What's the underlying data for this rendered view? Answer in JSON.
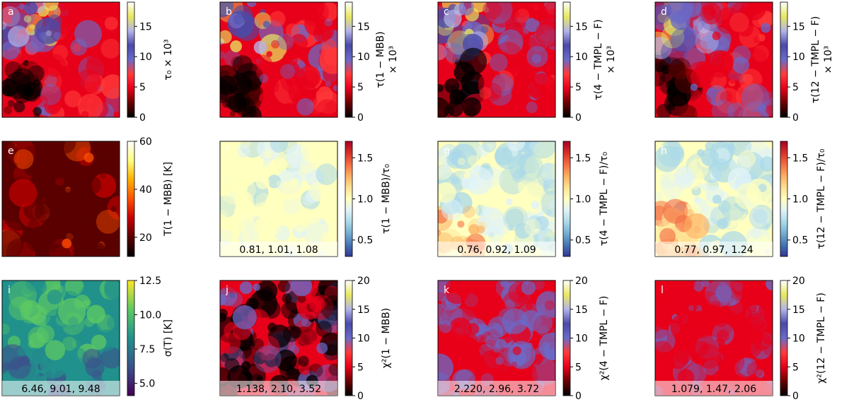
{
  "chart_data": [
    {
      "type": "heatmap",
      "letter": "a",
      "colormap": "tau",
      "label": "τ₀ × 10³",
      "label_lines": [
        "τ₀ × 10³"
      ],
      "clim": [
        0,
        19
      ],
      "ticks": [
        0,
        5,
        10,
        15
      ],
      "stats": ""
    },
    {
      "type": "heatmap",
      "letter": "b",
      "colormap": "tau",
      "label": "τ(1 − MBB) × 10³",
      "label_lines": [
        "τ(1 − MBB)",
        "× 10³"
      ],
      "clim": [
        0,
        19
      ],
      "ticks": [
        0,
        5,
        10,
        15
      ],
      "stats": ""
    },
    {
      "type": "heatmap",
      "letter": "c",
      "colormap": "tau",
      "label": "τ(4 − TMPL − F) × 10³",
      "label_lines": [
        "τ(4 − TMPL − F)",
        "× 10³"
      ],
      "clim": [
        0,
        19
      ],
      "ticks": [
        0,
        5,
        10,
        15
      ],
      "stats": ""
    },
    {
      "type": "heatmap",
      "letter": "d",
      "colormap": "tau",
      "label": "τ(12 − TMPL − F) × 10³",
      "label_lines": [
        "τ(12 − TMPL − F)",
        "× 10³"
      ],
      "clim": [
        0,
        19
      ],
      "ticks": [
        0,
        5,
        10,
        15
      ],
      "stats": ""
    },
    {
      "type": "heatmap",
      "letter": "e",
      "colormap": "hot",
      "label": "T(1 − MBB) [K]",
      "label_lines": [
        "T(1 − MBB) [K]"
      ],
      "clim": [
        12,
        60
      ],
      "ticks": [
        20,
        40,
        60
      ],
      "stats": ""
    },
    {
      "type": "heatmap",
      "letter": "f",
      "colormap": "rdylbu",
      "label": "τ(1 − MBB)/τ₀",
      "label_lines": [
        "τ(1 − MBB)/τ₀"
      ],
      "clim": [
        0.3,
        1.7
      ],
      "ticks": [
        0.5,
        1.0,
        1.5
      ],
      "stats": "0.81, 1.01, 1.08"
    },
    {
      "type": "heatmap",
      "letter": "g",
      "colormap": "rdylbu",
      "label": "τ(4 − TMPL − F)/τ₀",
      "label_lines": [
        "τ(4 − TMPL − F)/τ₀"
      ],
      "clim": [
        0.3,
        1.7
      ],
      "ticks": [
        0.5,
        1.0,
        1.5
      ],
      "stats": "0.76, 0.92, 1.09"
    },
    {
      "type": "heatmap",
      "letter": "h",
      "colormap": "rdylbu",
      "label": "τ(12 − TMPL − F)/τ₀",
      "label_lines": [
        "τ(12 − TMPL − F)/τ₀"
      ],
      "clim": [
        0.3,
        1.7
      ],
      "ticks": [
        0.5,
        1.0,
        1.5
      ],
      "stats": "0.77, 0.97, 1.24"
    },
    {
      "type": "heatmap",
      "letter": "i",
      "colormap": "viridis",
      "label": "σ(T) [K]",
      "label_lines": [
        "σ(T) [K]"
      ],
      "clim": [
        4.1,
        12.5
      ],
      "ticks": [
        5.0,
        7.5,
        10.0,
        12.5
      ],
      "stats": "6.46, 9.01, 9.48"
    },
    {
      "type": "heatmap",
      "letter": "j",
      "colormap": "tau",
      "label": "χ²(1 − MBB)",
      "label_lines": [
        "χ²(1 − MBB)"
      ],
      "clim": [
        0,
        20
      ],
      "ticks": [
        0,
        5,
        10,
        15,
        20
      ],
      "stats": "1.138, 2.10, 3.52"
    },
    {
      "type": "heatmap",
      "letter": "k",
      "colormap": "tau",
      "label": "χ²(4 − TMPL − F)",
      "label_lines": [
        "χ²(4 − TMPL − F)"
      ],
      "clim": [
        0,
        20
      ],
      "ticks": [
        0,
        5,
        10,
        15,
        20
      ],
      "stats": "2.220, 2.96, 3.72"
    },
    {
      "type": "heatmap",
      "letter": "l",
      "colormap": "tau",
      "label": "χ²(12 − TMPL − F)",
      "label_lines": [
        "χ²(12 − TMPL − F)"
      ],
      "clim": [
        0,
        20
      ],
      "ticks": [
        0,
        5,
        10,
        15,
        20
      ],
      "stats": "1.079, 1.47, 2.06"
    }
  ],
  "colormaps": {
    "tau": [
      "#000000",
      "#6a0000",
      "#e8001a",
      "#ff3a3a",
      "#6a6ac8",
      "#4a4aa8",
      "#b4b4e8",
      "#e8e860",
      "#ffffff"
    ],
    "hot": [
      "#000000",
      "#5a0000",
      "#c80000",
      "#ff5000",
      "#ffb000",
      "#ffff80",
      "#ffffff"
    ],
    "rdylbu": [
      "#313695",
      "#4575b4",
      "#74add1",
      "#abd9e9",
      "#e0f3f8",
      "#ffffbf",
      "#fee090",
      "#fdae61",
      "#f46d43",
      "#d73027",
      "#a50026"
    ],
    "viridis": [
      "#440154",
      "#3b528b",
      "#21918c",
      "#5ec962",
      "#fde725"
    ]
  }
}
